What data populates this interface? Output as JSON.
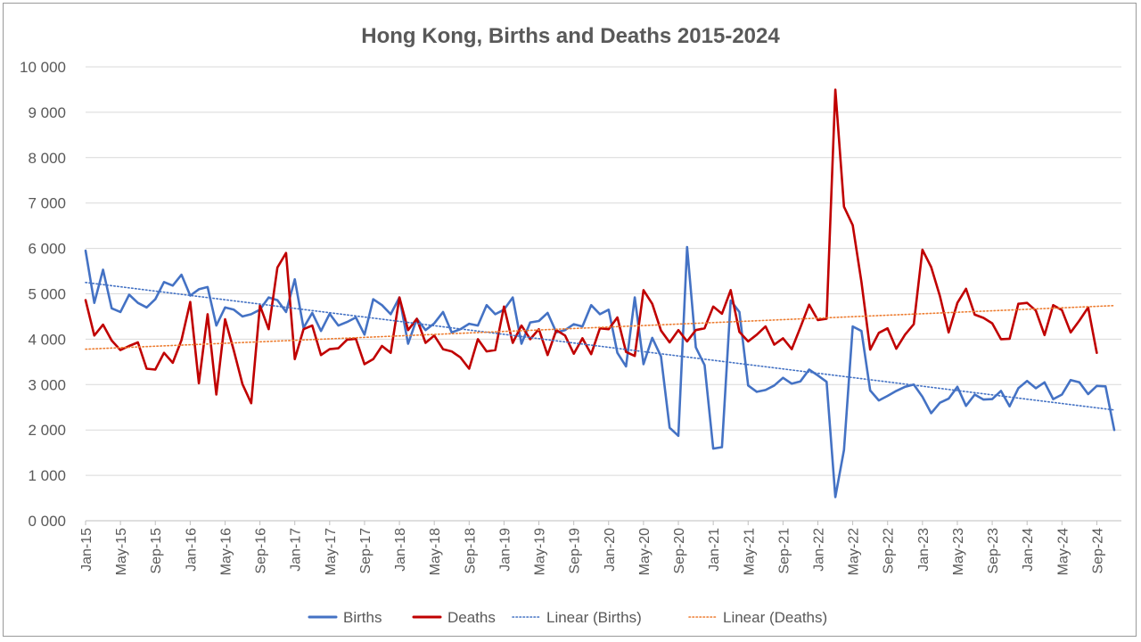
{
  "chart_data": {
    "type": "line",
    "title": "Hong Kong, Births and Deaths 2015-2024",
    "xlabel": "",
    "ylabel": "",
    "ylim": [
      0,
      10000
    ],
    "yticks": [
      "0 000",
      "1 000",
      "2 000",
      "3 000",
      "4 000",
      "5 000",
      "6 000",
      "7 000",
      "8 000",
      "9 000",
      "10 000"
    ],
    "x_start": "Jan-15",
    "x_tick_labels": [
      "Jan-15",
      "May-15",
      "Sep-15",
      "Jan-16",
      "May-16",
      "Sep-16",
      "Jan-17",
      "May-17",
      "Sep-17",
      "Jan-18",
      "May-18",
      "Sep-18",
      "Jan-19",
      "May-19",
      "Sep-19",
      "Jan-20",
      "May-20",
      "Sep-20",
      "Jan-21",
      "May-21",
      "Sep-21",
      "Jan-22",
      "May-22",
      "Sep-22",
      "Jan-23",
      "May-23",
      "Sep-23",
      "Jan-24",
      "May-24",
      "Sep-24"
    ],
    "grid": "horizontal",
    "legend_position": "bottom",
    "series": [
      {
        "name": "Births",
        "color": "#4472c4",
        "style": "solid",
        "values": [
          5950,
          4800,
          5530,
          4680,
          4600,
          4980,
          4800,
          4700,
          4880,
          5260,
          5180,
          5420,
          4960,
          5100,
          5150,
          4300,
          4700,
          4650,
          4500,
          4550,
          4650,
          4920,
          4860,
          4600,
          5320,
          4250,
          4580,
          4180,
          4560,
          4300,
          4380,
          4480,
          4100,
          4880,
          4750,
          4550,
          4920,
          3900,
          4450,
          4200,
          4350,
          4600,
          4150,
          4220,
          4340,
          4300,
          4750,
          4550,
          4650,
          4920,
          3900,
          4370,
          4400,
          4580,
          4150,
          4200,
          4330,
          4280,
          4750,
          4550,
          4650,
          3700,
          3400,
          4920,
          3450,
          4030,
          3620,
          2050,
          1870,
          6030,
          3820,
          3430,
          1590,
          1620,
          4850,
          4600,
          2980,
          2840,
          2880,
          2980,
          3150,
          3020,
          3070,
          3330,
          3200,
          3060,
          520,
          1560,
          4280,
          4180,
          2870,
          2650,
          2750,
          2860,
          2950,
          3000,
          2730,
          2370,
          2600,
          2690,
          2950,
          2530,
          2780,
          2670,
          2680,
          2860,
          2520,
          2920,
          3080,
          2920,
          3050,
          2680,
          2780,
          3100,
          3050,
          2790,
          2970,
          2960,
          2000
        ]
      },
      {
        "name": "Deaths",
        "color": "#c00000",
        "style": "solid",
        "values": [
          4860,
          4080,
          4320,
          3970,
          3760,
          3850,
          3930,
          3350,
          3330,
          3700,
          3480,
          3980,
          4820,
          3030,
          4550,
          2780,
          4440,
          3750,
          3010,
          2590,
          4740,
          4220,
          5580,
          5900,
          3560,
          4220,
          4300,
          3650,
          3780,
          3800,
          3990,
          4010,
          3450,
          3560,
          3850,
          3700,
          4920,
          4200,
          4450,
          3920,
          4080,
          3780,
          3730,
          3600,
          3350,
          4000,
          3730,
          3760,
          4720,
          3920,
          4300,
          4000,
          4220,
          3650,
          4200,
          4080,
          3680,
          4020,
          3670,
          4240,
          4220,
          4480,
          3720,
          3630,
          5080,
          4780,
          4190,
          3930,
          4200,
          3950,
          4200,
          4240,
          4720,
          4560,
          5080,
          4160,
          3950,
          4100,
          4280,
          3880,
          4020,
          3780,
          4260,
          4760,
          4420,
          4450,
          9500,
          6920,
          6510,
          5260,
          3770,
          4140,
          4240,
          3790,
          4100,
          4330,
          5970,
          5590,
          4950,
          4150,
          4800,
          5110,
          4540,
          4470,
          4350,
          4000,
          4010,
          4780,
          4800,
          4630,
          4090,
          4750,
          4640,
          4150,
          4410,
          4700,
          3700
        ]
      },
      {
        "name": "Linear (Births)",
        "color": "#4472c4",
        "style": "dotted",
        "trend": "linear",
        "start": 5250,
        "end": 2440
      },
      {
        "name": "Linear (Deaths)",
        "color": "#ed7d31",
        "style": "dotted",
        "trend": "linear",
        "start": 3780,
        "end": 4740
      }
    ]
  }
}
